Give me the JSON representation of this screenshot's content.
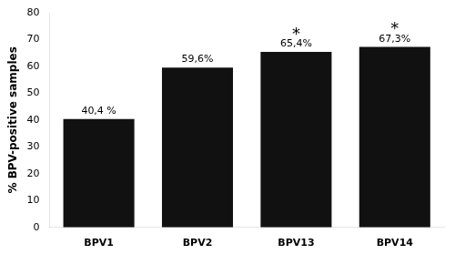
{
  "chart_data": {
    "type": "bar",
    "categories": [
      "BPV1",
      "BPV2",
      "BPV13",
      "BPV14"
    ],
    "values": [
      40.4,
      59.6,
      65.4,
      67.3
    ],
    "value_labels": [
      "40,4 %",
      "59,6%",
      "65,4%",
      "67,3%"
    ],
    "data_labels": true,
    "color": "#111111",
    "ylabel": "% BPV-positive samples",
    "ylim": [
      0,
      80
    ],
    "yticks": [
      0,
      10,
      20,
      30,
      40,
      50,
      60,
      70,
      80
    ],
    "grid": false,
    "annotations": [
      {
        "x": "BPV13",
        "text": "*"
      },
      {
        "x": "BPV14",
        "text": "*"
      }
    ]
  }
}
